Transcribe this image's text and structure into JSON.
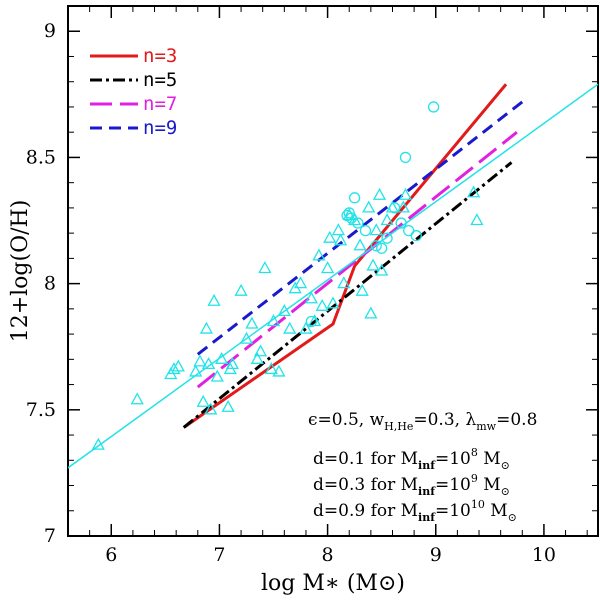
{
  "chart_data": {
    "type": "scatter",
    "xlabel": "log M∗ (M⊙)",
    "ylabel": "12+log(O/H)",
    "xlim": [
      5.6,
      10.5
    ],
    "ylim": [
      7.0,
      9.1
    ],
    "xticks": [
      6,
      7,
      8,
      9,
      10
    ],
    "yticks": [
      7,
      7.5,
      8,
      8.5,
      9
    ],
    "xtick_labels": [
      "6",
      "7",
      "8",
      "9",
      "10"
    ],
    "ytick_labels": [
      "7",
      "7.5",
      "8",
      "8.5",
      "9"
    ],
    "legend_position": "top-left",
    "series": [
      {
        "name": "n=3",
        "color": "#e21a1a",
        "style": "solid",
        "x": [
          6.67,
          8.05,
          8.25,
          9.65
        ],
        "y": [
          7.43,
          7.84,
          8.07,
          8.79
        ]
      },
      {
        "name": "n=5",
        "color": "#000000",
        "style": "dashdot",
        "x": [
          6.67,
          9.7
        ],
        "y": [
          7.43,
          8.48
        ]
      },
      {
        "name": "n=7",
        "color": "#e021e0",
        "style": "longdash",
        "x": [
          6.8,
          9.75
        ],
        "y": [
          7.59,
          8.6
        ]
      },
      {
        "name": "n=9",
        "color": "#1a1acc",
        "style": "dash",
        "x": [
          6.8,
          9.8
        ],
        "y": [
          7.72,
          8.72
        ]
      },
      {
        "color": "#21e3e8",
        "style": "solid-fit",
        "x": [
          5.6,
          10.5
        ],
        "y": [
          7.27,
          8.79
        ]
      },
      {
        "color": "#21e3e8",
        "marker": "triangle",
        "x": [
          5.88,
          6.24,
          6.55,
          6.58,
          6.62,
          6.78,
          6.82,
          6.85,
          6.88,
          6.9,
          6.92,
          6.95,
          6.98,
          7.02,
          7.08,
          7.1,
          7.12,
          7.2,
          7.25,
          7.3,
          7.35,
          7.38,
          7.42,
          7.48,
          7.5,
          7.55,
          7.6,
          7.65,
          7.7,
          7.75,
          7.8,
          7.85,
          7.88,
          7.92,
          7.95,
          8.0,
          8.02,
          8.05,
          8.1,
          8.12,
          8.15,
          8.2,
          8.25,
          8.3,
          8.32,
          8.38,
          8.4,
          8.42,
          8.45,
          8.48,
          8.5,
          8.55,
          8.6,
          8.7,
          8.72,
          9.35,
          9.38
        ],
        "y": [
          7.36,
          7.54,
          7.64,
          7.66,
          7.67,
          7.65,
          7.69,
          7.53,
          7.82,
          7.68,
          7.5,
          7.93,
          7.63,
          7.7,
          7.51,
          7.66,
          7.68,
          7.97,
          7.78,
          7.84,
          7.7,
          7.73,
          8.06,
          7.66,
          7.85,
          7.65,
          7.89,
          7.82,
          7.98,
          8.0,
          7.82,
          7.94,
          7.85,
          8.11,
          7.91,
          8.06,
          8.18,
          7.92,
          8.21,
          8.17,
          8.0,
          8.27,
          8.25,
          8.15,
          7.97,
          8.3,
          7.88,
          8.07,
          8.21,
          8.35,
          8.05,
          8.25,
          8.3,
          8.3,
          8.35,
          8.36,
          8.25
        ]
      },
      {
        "color": "#21e3e8",
        "marker": "circle",
        "x": [
          7.85,
          8.18,
          8.2,
          8.22,
          8.25,
          8.28,
          8.35,
          8.45,
          8.5,
          8.55,
          8.62,
          8.68,
          8.72,
          8.75,
          8.82,
          8.98
        ],
        "y": [
          7.85,
          8.27,
          8.28,
          8.26,
          8.34,
          8.24,
          8.21,
          8.15,
          8.14,
          8.18,
          8.3,
          8.24,
          8.5,
          8.21,
          8.19,
          8.7
        ]
      }
    ],
    "annotations": {
      "line1": "ϵ=0.5,  w",
      "line1_sub1": "H,He",
      "line1_b": "=0.3,  λ",
      "line1_sub2": "mw",
      "line1_c": "=0.8",
      "rows": [
        {
          "d": "d=0.1",
          "for": "for  M",
          "sub": "inf",
          "eq": "=10",
          "exp": "8",
          "unit": " M",
          "sun": "⊙"
        },
        {
          "d": "d=0.3",
          "for": "for  M",
          "sub": "inf",
          "eq": "=10",
          "exp": "9",
          "unit": " M",
          "sun": "⊙"
        },
        {
          "d": "d=0.9",
          "for": "for  M",
          "sub": "inf",
          "eq": "=10",
          "exp": "10",
          "unit": " M",
          "sun": "⊙"
        }
      ]
    }
  }
}
